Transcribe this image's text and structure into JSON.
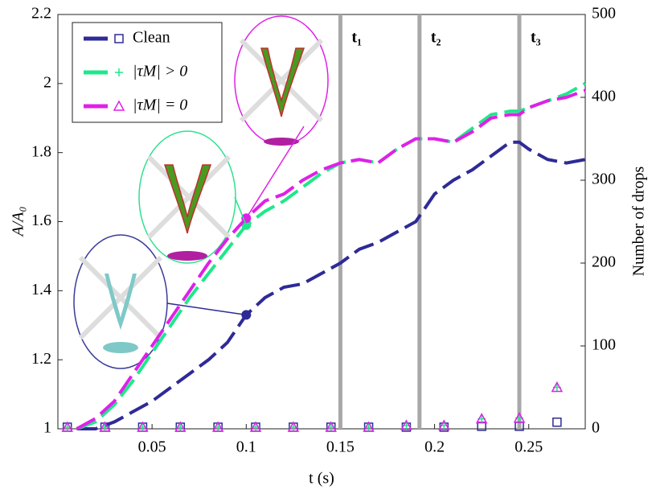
{
  "chart_data": {
    "type": "line",
    "xlabel": "t (s)",
    "ylabel": "A/A₀",
    "y2label": "Number of drops",
    "xlim": [
      0,
      0.28
    ],
    "xticks": [
      0.05,
      0.1,
      0.15,
      0.2,
      0.25
    ],
    "ylim": [
      1,
      2.2
    ],
    "yticks": [
      1,
      1.2,
      1.4,
      1.6,
      1.8,
      2,
      2.2
    ],
    "y2lim": [
      0,
      500
    ],
    "y2ticks": [
      0,
      100,
      200,
      300,
      400,
      500
    ],
    "x": [
      0.01,
      0.02,
      0.03,
      0.04,
      0.05,
      0.06,
      0.07,
      0.08,
      0.09,
      0.1,
      0.11,
      0.12,
      0.13,
      0.14,
      0.15,
      0.16,
      0.17,
      0.18,
      0.19,
      0.2,
      0.21,
      0.22,
      0.23,
      0.24,
      0.245,
      0.25,
      0.26,
      0.27,
      0.28
    ],
    "highlight": 0.1,
    "drop_x": [
      0.005,
      0.025,
      0.045,
      0.065,
      0.085,
      0.105,
      0.125,
      0.145,
      0.165,
      0.185,
      0.205,
      0.225,
      0.245,
      0.265
    ],
    "events": [
      {
        "x": 0.15,
        "label": "t₁"
      },
      {
        "x": 0.192,
        "label": "t₂"
      },
      {
        "x": 0.245,
        "label": "t₃"
      }
    ],
    "series": [
      {
        "name": "Clean",
        "color": "#2e2a96",
        "marker": "square",
        "values": [
          1.0,
          1.0,
          1.02,
          1.05,
          1.08,
          1.12,
          1.16,
          1.2,
          1.25,
          1.33,
          1.38,
          1.41,
          1.42,
          1.45,
          1.48,
          1.52,
          1.54,
          1.57,
          1.6,
          1.68,
          1.72,
          1.75,
          1.79,
          1.83,
          1.83,
          1.81,
          1.78,
          1.77,
          1.78
        ],
        "drops": [
          2,
          2,
          2,
          2,
          2,
          2,
          2,
          2,
          2,
          2,
          2,
          3,
          3,
          8
        ]
      },
      {
        "name": "|τM| > 0",
        "color": "#1ee88a",
        "marker": "plus",
        "values": [
          1.0,
          1.02,
          1.07,
          1.14,
          1.22,
          1.3,
          1.38,
          1.45,
          1.52,
          1.59,
          1.63,
          1.66,
          1.7,
          1.74,
          1.77,
          1.78,
          1.77,
          1.81,
          1.84,
          1.84,
          1.83,
          1.87,
          1.91,
          1.92,
          1.92,
          1.93,
          1.95,
          1.97,
          2.0
        ],
        "drops": [
          2,
          2,
          2,
          2,
          2,
          2,
          2,
          2,
          2,
          4,
          4,
          12,
          13,
          50
        ]
      },
      {
        "name": "|τM| = 0",
        "color": "#e020e8",
        "marker": "triangle",
        "values": [
          1.0,
          1.03,
          1.08,
          1.16,
          1.24,
          1.32,
          1.4,
          1.48,
          1.55,
          1.61,
          1.66,
          1.68,
          1.72,
          1.75,
          1.77,
          1.78,
          1.77,
          1.81,
          1.84,
          1.84,
          1.83,
          1.86,
          1.9,
          1.91,
          1.91,
          1.93,
          1.95,
          1.96,
          1.98
        ],
        "drops": [
          2,
          2,
          2,
          2,
          2,
          2,
          2,
          2,
          2,
          4,
          4,
          12,
          13,
          50
        ]
      }
    ]
  }
}
